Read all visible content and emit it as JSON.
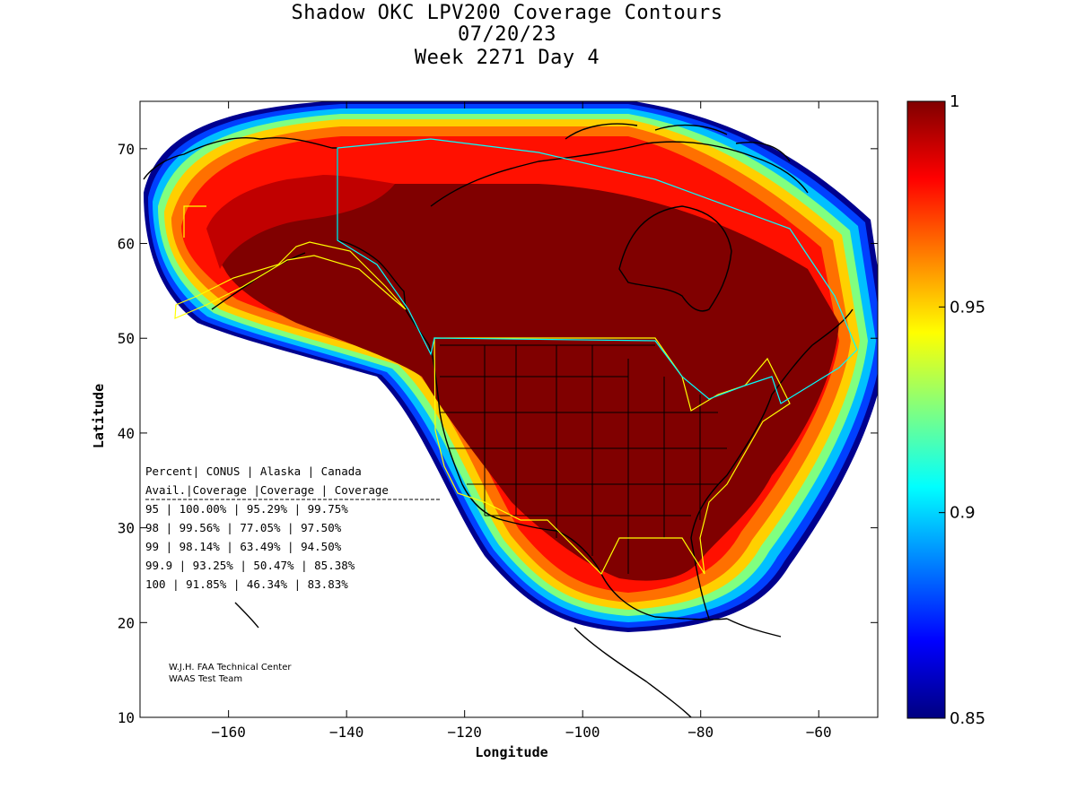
{
  "title": {
    "line1": "Shadow OKC LPV200 Coverage Contours",
    "line2": "07/20/23",
    "line3": "Week 2271 Day 4"
  },
  "axes": {
    "xlabel": "Longitude",
    "ylabel": "Latitude",
    "xlim": [
      -175,
      -50
    ],
    "ylim": [
      10,
      75
    ],
    "xticks": [
      -160,
      -140,
      -120,
      -100,
      -80,
      -60
    ],
    "yticks": [
      10,
      20,
      30,
      40,
      50,
      60,
      70
    ]
  },
  "colorbar": {
    "range": [
      0.85,
      1
    ],
    "ticks": [
      {
        "value": 1,
        "label": "1"
      },
      {
        "value": 0.95,
        "label": "0.95"
      },
      {
        "value": 0.9,
        "label": "0.9"
      },
      {
        "value": 0.85,
        "label": "0.85"
      }
    ],
    "colormap": "jet",
    "colors": [
      "#000080",
      "#0000ff",
      "#0080ff",
      "#00ffff",
      "#80ff80",
      "#ffff00",
      "#ff8000",
      "#ff0000",
      "#800000"
    ]
  },
  "stats_table": {
    "header1": "Percent| CONUS   | Alaska  | Canada",
    "header2": " Avail.|Coverage |Coverage | Coverage",
    "rows": [
      "  95   | 100.00%  | 95.29% | 99.75%",
      "  98   | 99.56%  | 77.05% | 97.50%",
      "  99   | 98.14%  | 63.49% | 94.50%",
      "99.9   | 93.25%  | 50.47% | 85.38%",
      " 100   | 91.85%  | 46.34% | 83.83%"
    ]
  },
  "credits": {
    "line1": "W.J.H. FAA Technical Center",
    "line2": "WAAS Test Team"
  },
  "service_volume_colors": {
    "conus": "#ffff00",
    "alaska": "#ffff00",
    "canada": "#00ffff"
  }
}
